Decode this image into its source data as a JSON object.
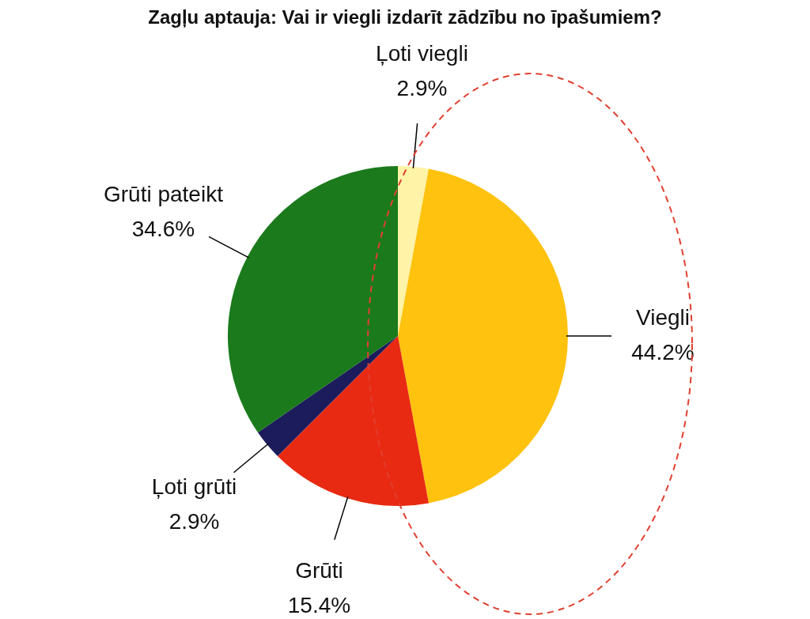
{
  "chart_data": {
    "type": "pie",
    "title": "Zagļu aptauja: Vai ir viegli izdarīt zādzību no īpašumiem?",
    "categories": [
      "Ļoti viegli",
      "Viegli",
      "Grūti",
      "Ļoti grūti",
      "Grūti pateikt"
    ],
    "values": [
      2.9,
      44.2,
      15.4,
      2.9,
      34.6
    ],
    "value_labels": [
      "2.9%",
      "44.2%",
      "15.4%",
      "2.9%",
      "34.6%"
    ],
    "colors": [
      "#fff3a8",
      "#ffc20e",
      "#e82a12",
      "#1c1c5c",
      "#1b7a1b"
    ],
    "legend": false
  }
}
